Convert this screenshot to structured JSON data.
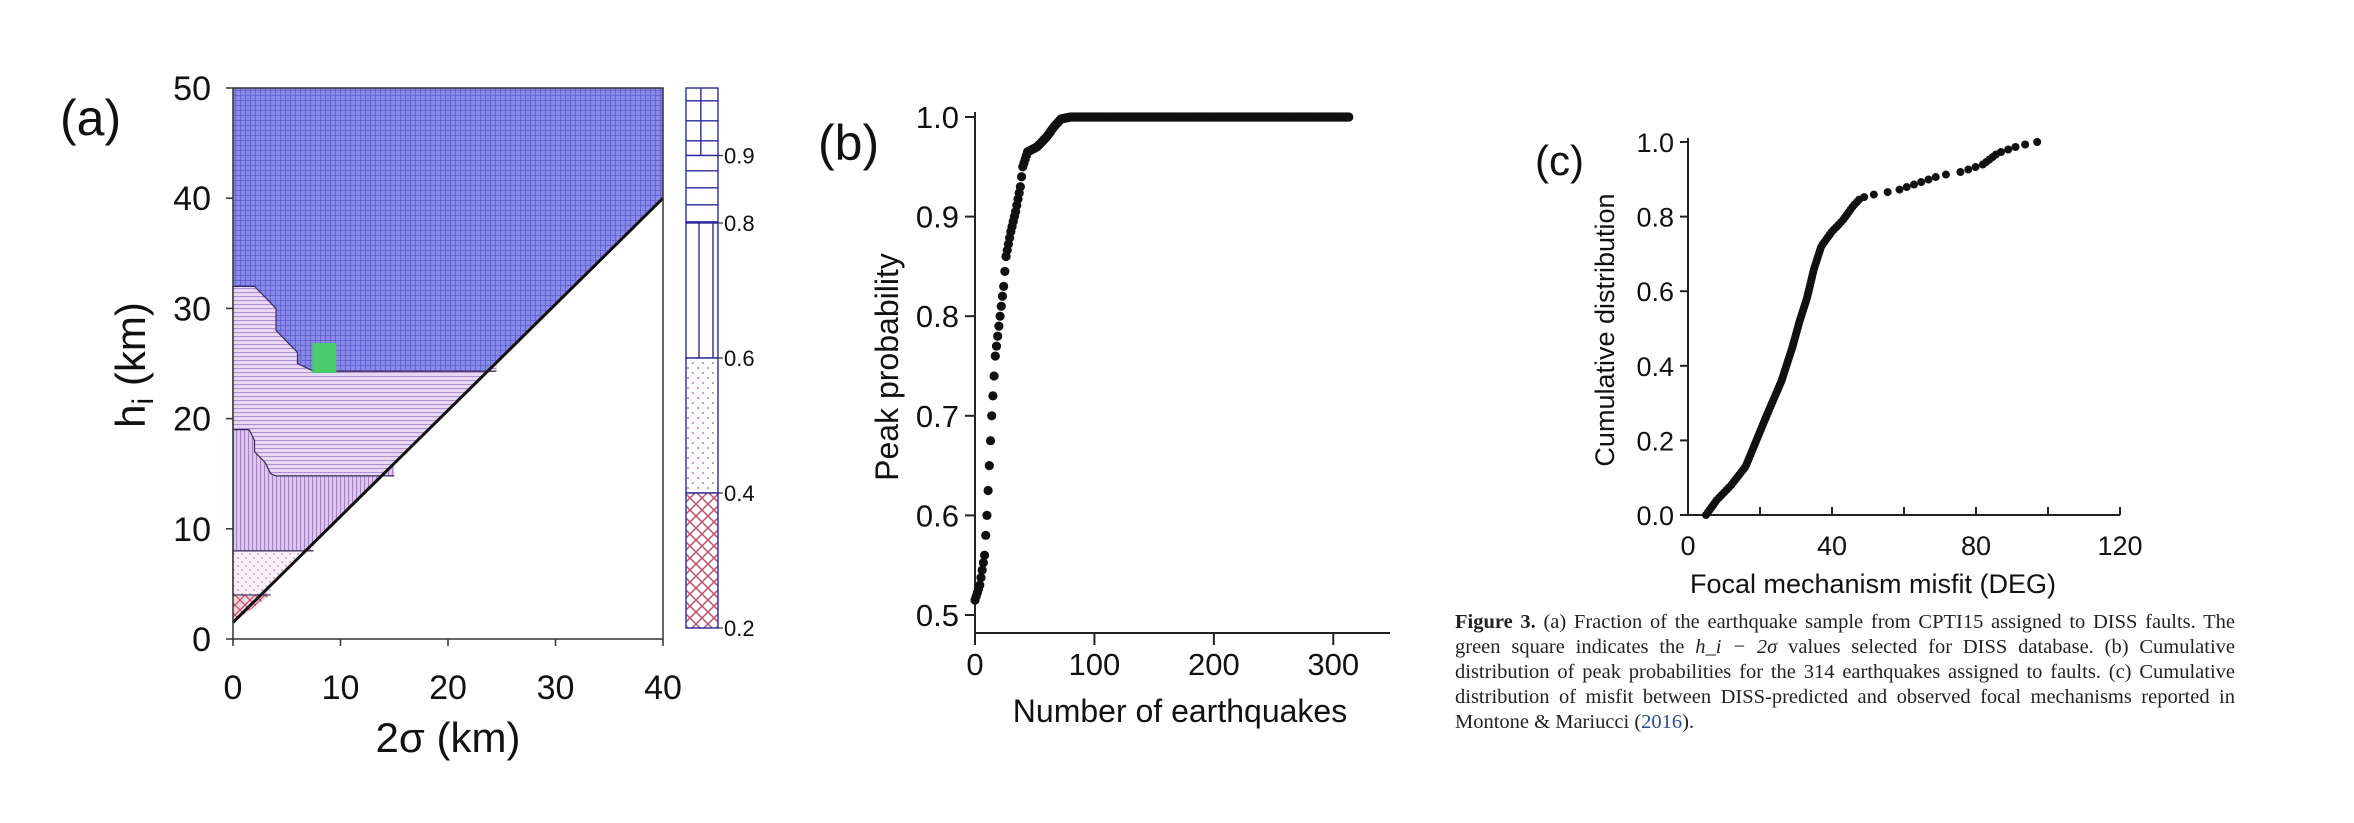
{
  "chart_data": [
    {
      "panel": "(a)",
      "type": "heatmap",
      "xlabel": "2σ (km)",
      "ylabel": "hi (km)",
      "xlim": [
        0,
        40
      ],
      "ylim": [
        0,
        50
      ],
      "xticks": [
        0,
        10,
        20,
        30,
        40
      ],
      "yticks": [
        0,
        10,
        20,
        30,
        40,
        50
      ],
      "colorbar_ticks": [
        "0.2",
        "0.4",
        "0.6",
        "0.8",
        "0.9"
      ],
      "classes": [
        {
          "range": [
            0.9,
            1.0
          ],
          "color": "#7f7fe6"
        },
        {
          "range": [
            0.8,
            0.9
          ],
          "color": "#d9c8ee"
        },
        {
          "range": [
            0.6,
            0.8
          ],
          "color": "#cfb2e3"
        },
        {
          "range": [
            0.4,
            0.6
          ],
          "color": "#f4e4f2"
        },
        {
          "range": [
            0.2,
            0.4
          ],
          "color": "#cd7a8c"
        }
      ],
      "contours": [
        {
          "class": "0.9-1.0",
          "boundary": [
            [
              0,
              32
            ],
            [
              2,
              32
            ],
            [
              3,
              31
            ],
            [
              4,
              30
            ],
            [
              4,
              28
            ],
            [
              5,
              27
            ],
            [
              6,
              26
            ],
            [
              6,
              25
            ],
            [
              7.5,
              24.3
            ],
            [
              24.5,
              24.3
            ]
          ]
        },
        {
          "class": "0.8-0.9",
          "boundary": [
            [
              0,
              32
            ],
            [
              0,
              19
            ],
            [
              1.5,
              19
            ],
            [
              2,
              18
            ],
            [
              2,
              17
            ],
            [
              3,
              16
            ],
            [
              3.5,
              15
            ],
            [
              4,
              14.8
            ],
            [
              15,
              14.8
            ]
          ]
        },
        {
          "class": "0.6-0.8",
          "boundary": [
            [
              0,
              19
            ],
            [
              0,
              8
            ],
            [
              7.5,
              8
            ]
          ]
        },
        {
          "class": "0.4-0.6",
          "boundary": [
            [
              0,
              8
            ],
            [
              0,
              4
            ],
            [
              3.5,
              4
            ]
          ]
        },
        {
          "class": "0.2-0.4",
          "boundary": [
            [
              0,
              4
            ],
            [
              0,
              1.5
            ],
            [
              3.5,
              4
            ]
          ]
        }
      ],
      "diagonal": [
        [
          0,
          1.5
        ],
        [
          40,
          40
        ]
      ],
      "selected_point": {
        "x": 8.5,
        "y": 25.5,
        "color": "#49cc6a"
      }
    },
    {
      "panel": "(b)",
      "type": "scatter",
      "xlabel": "Number of earthquakes",
      "ylabel": "Peak probability",
      "xlim": [
        0,
        314
      ],
      "ylim": [
        0.5,
        1.0
      ],
      "xticks": [
        0,
        100,
        200,
        300
      ],
      "yticks": [
        "0.5",
        "0.6",
        "0.7",
        "0.8",
        "0.9",
        "1.0"
      ],
      "n_points": 314,
      "cdf_knots": [
        [
          0,
          0.515
        ],
        [
          4,
          0.53
        ],
        [
          8,
          0.56
        ],
        [
          10,
          0.6
        ],
        [
          12,
          0.65
        ],
        [
          14,
          0.7
        ],
        [
          17,
          0.76
        ],
        [
          20,
          0.79
        ],
        [
          24,
          0.83
        ],
        [
          26,
          0.86
        ],
        [
          30,
          0.885
        ],
        [
          34,
          0.905
        ],
        [
          38,
          0.93
        ],
        [
          40,
          0.95
        ],
        [
          44,
          0.965
        ],
        [
          52,
          0.97
        ],
        [
          60,
          0.98
        ],
        [
          66,
          0.99
        ],
        [
          72,
          0.998
        ],
        [
          80,
          1.0
        ],
        [
          314,
          1.0
        ]
      ]
    },
    {
      "panel": "(c)",
      "type": "scatter",
      "xlabel": "Focal mechanism misfit (DEG)",
      "ylabel": "Cumulative distribution",
      "xlim": [
        0,
        120
      ],
      "ylim": [
        0,
        1.0
      ],
      "xticks": [
        0,
        40,
        80,
        120
      ],
      "yticks": [
        "0.0",
        "0.2",
        "0.4",
        "0.6",
        "0.8",
        "1.0"
      ],
      "cdf_knots": [
        [
          5,
          0.0
        ],
        [
          8,
          0.04
        ],
        [
          12,
          0.08
        ],
        [
          16,
          0.13
        ],
        [
          19,
          0.2
        ],
        [
          22,
          0.27
        ],
        [
          26,
          0.36
        ],
        [
          29,
          0.45
        ],
        [
          31,
          0.52
        ],
        [
          33,
          0.58
        ],
        [
          35,
          0.66
        ],
        [
          37,
          0.72
        ],
        [
          40,
          0.76
        ],
        [
          43,
          0.79
        ],
        [
          46,
          0.83
        ],
        [
          48,
          0.85
        ],
        [
          52,
          0.86
        ],
        [
          58,
          0.87
        ],
        [
          64,
          0.89
        ],
        [
          70,
          0.91
        ],
        [
          76,
          0.92
        ],
        [
          82,
          0.94
        ],
        [
          86,
          0.97
        ],
        [
          92,
          0.99
        ],
        [
          97,
          1.0
        ]
      ],
      "n_points": 150
    }
  ],
  "caption": {
    "label": "Figure 3.",
    "part1": " (a) Fraction of the earthquake sample from CPTI15 assigned to DISS faults. The green square indicates the ",
    "math": "h_i − 2σ",
    "part2": " values selected for DISS database. (b) Cumulative distribution of peak probabilities for the 314 earthquakes assigned to faults. (c) Cumulative distribution of misfit between DISS-predicted and observed focal mechanisms reported in Montone & Mariucci (",
    "citation": "2016",
    "part3": ")."
  }
}
